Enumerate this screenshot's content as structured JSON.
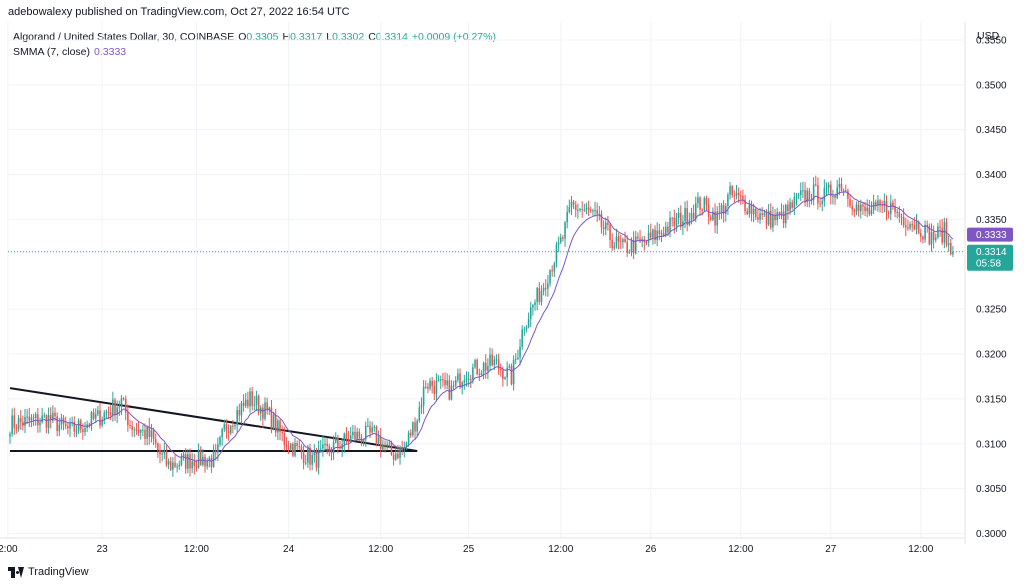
{
  "header": {
    "published": "adebowalexy published on TradingView.com, Oct 27, 2022 16:54 UTC"
  },
  "legend": {
    "symbol": "Algorand / United States Dollar, 30, COINBASE",
    "o_label": "O",
    "o_value": "0.3305",
    "h_label": "H",
    "h_value": "0.3317",
    "l_label": "L",
    "l_value": "0.3302",
    "c_label": "C",
    "c_value": "0.3314",
    "change": "+0.0009 (+0.27%)",
    "indicator": "SMMA (7, close)",
    "indicator_value": "0.3333"
  },
  "currency": "USD",
  "footer": {
    "brand": "TradingView",
    "logo_icon": "tradingview-logo-icon"
  },
  "chart_data": {
    "type": "candlestick",
    "colors": {
      "up": "#26a69a",
      "down": "#ef5350",
      "smma": "#7e57c2",
      "price_line": "#26a69a",
      "smma_badge": "#7e57c2",
      "trendline": "#131722"
    },
    "y_ticks": [
      "0.3550",
      "0.3500",
      "0.3450",
      "0.3400",
      "0.3350",
      "0.3250",
      "0.3200",
      "0.3150",
      "0.3100",
      "0.3050",
      "0.3000"
    ],
    "x_ticks": [
      "2:00",
      "23",
      "12:00",
      "24",
      "12:00",
      "25",
      "12:00",
      "26",
      "12:00",
      "27",
      "12:00"
    ],
    "ylim": [
      0.2995,
      0.357
    ],
    "last_price": {
      "value": 0.3314,
      "label": "0.3314",
      "countdown": "05:58"
    },
    "smma_last": {
      "value": 0.3333,
      "label": "0.3333"
    },
    "anchors": [
      [
        0,
        0.3122
      ],
      [
        18,
        0.3128
      ],
      [
        28,
        0.3114
      ],
      [
        42,
        0.313
      ],
      [
        52,
        0.3147
      ],
      [
        56,
        0.3122
      ],
      [
        66,
        0.3107
      ],
      [
        70,
        0.3088
      ],
      [
        74,
        0.3076
      ],
      [
        86,
        0.3083
      ],
      [
        96,
        0.3082
      ],
      [
        100,
        0.3116
      ],
      [
        106,
        0.3135
      ],
      [
        112,
        0.315
      ],
      [
        120,
        0.3135
      ],
      [
        128,
        0.3104
      ],
      [
        134,
        0.3093
      ],
      [
        142,
        0.3082
      ],
      [
        152,
        0.3098
      ],
      [
        160,
        0.3108
      ],
      [
        170,
        0.311
      ],
      [
        178,
        0.3088
      ],
      [
        184,
        0.3095
      ],
      [
        190,
        0.313
      ],
      [
        194,
        0.3168
      ],
      [
        206,
        0.3159
      ],
      [
        212,
        0.318
      ],
      [
        226,
        0.319
      ],
      [
        234,
        0.3174
      ],
      [
        240,
        0.3235
      ],
      [
        248,
        0.3272
      ],
      [
        258,
        0.333
      ],
      [
        262,
        0.3366
      ],
      [
        272,
        0.3355
      ],
      [
        282,
        0.3324
      ],
      [
        286,
        0.3318
      ],
      [
        296,
        0.3324
      ],
      [
        306,
        0.334
      ],
      [
        316,
        0.3355
      ],
      [
        322,
        0.3368
      ],
      [
        330,
        0.3352
      ],
      [
        336,
        0.3377
      ],
      [
        342,
        0.337
      ],
      [
        352,
        0.335
      ],
      [
        360,
        0.3352
      ],
      [
        368,
        0.3372
      ],
      [
        374,
        0.338
      ],
      [
        380,
        0.3375
      ],
      [
        388,
        0.339
      ],
      [
        396,
        0.336
      ],
      [
        402,
        0.3358
      ],
      [
        410,
        0.3366
      ],
      [
        416,
        0.3353
      ],
      [
        424,
        0.3343
      ],
      [
        430,
        0.333
      ],
      [
        436,
        0.3336
      ],
      [
        440,
        0.3305
      ]
    ],
    "trendlines": [
      {
        "name": "descending-trendline",
        "start": [
          0,
          0.3162
        ],
        "end": [
          190,
          0.3092
        ]
      },
      {
        "name": "horizontal-support",
        "start": [
          0,
          0.3092
        ],
        "end": [
          190,
          0.3092
        ]
      }
    ],
    "smma_period": 7
  }
}
